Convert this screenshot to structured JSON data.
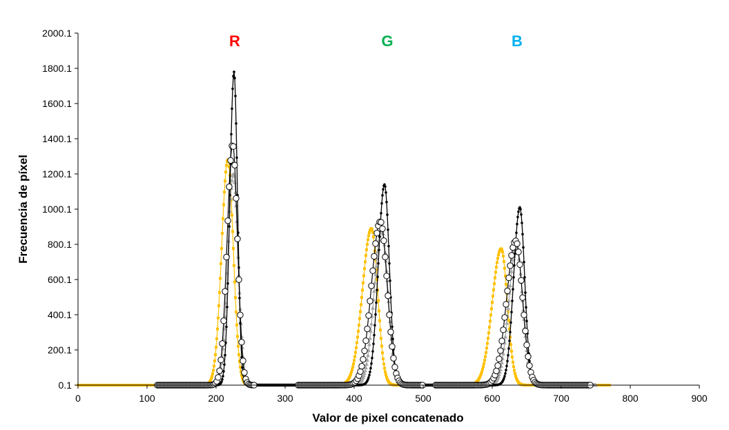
{
  "chart_data": {
    "type": "line",
    "title": "",
    "xlabel": "Valor de pixel concatenado",
    "ylabel": "Frecuencia de píxel",
    "xlim": [
      0,
      900
    ],
    "ylim": [
      0.1,
      2000.1
    ],
    "x_ticks": [
      0,
      100,
      200,
      300,
      400,
      500,
      600,
      700,
      800,
      900
    ],
    "x_tick_labels": [
      "0",
      "100",
      "200",
      "300",
      "400",
      "500",
      "600",
      "700",
      "800",
      "900"
    ],
    "y_ticks": [
      0.1,
      200.1,
      400.1,
      600.1,
      800.1,
      1000.1,
      1200.1,
      1400.1,
      1600.1,
      1800.1,
      2000.1
    ],
    "y_tick_labels": [
      "0.1",
      "200.1",
      "400.1",
      "600.1",
      "800.1",
      "1000.1",
      "1200.1",
      "1400.1",
      "1600.1",
      "1800.1",
      "2000.1"
    ],
    "grid": false,
    "legend": "none",
    "annotations": [
      {
        "text": "R",
        "x": 227,
        "y": 1980,
        "color": "#FF0000"
      },
      {
        "text": "G",
        "x": 448,
        "y": 1980,
        "color": "#00B050"
      },
      {
        "text": "B",
        "x": 636,
        "y": 1980,
        "color": "#00B0F0"
      }
    ],
    "series": [
      {
        "name": "yellow-square-series",
        "color": "#FFC000",
        "marker": "square",
        "peaks": [
          {
            "channel": "R",
            "center": 217,
            "height": 1280,
            "sigma_left": 9,
            "sigma_right": 8
          },
          {
            "channel": "G",
            "center": 425,
            "height": 890,
            "sigma_left": 13,
            "sigma_right": 9
          },
          {
            "channel": "B",
            "center": 613,
            "height": 775,
            "sigma_left": 13,
            "sigma_right": 9
          }
        ],
        "x_range": [
          0,
          770
        ]
      },
      {
        "name": "gray-triangle-series",
        "color": "#A6A6A6",
        "marker": "triangle",
        "peaks": [
          {
            "channel": "R",
            "center": 225,
            "height": 1200,
            "sigma_left": 8,
            "sigma_right": 7
          },
          {
            "channel": "G",
            "center": 440,
            "height": 880,
            "sigma_left": 11,
            "sigma_right": 9
          },
          {
            "channel": "B",
            "center": 635,
            "height": 790,
            "sigma_left": 11,
            "sigma_right": 9
          }
        ],
        "x_range": [
          120,
          750
        ]
      },
      {
        "name": "black-dot-series",
        "color": "#000000",
        "marker": "dot",
        "peaks": [
          {
            "channel": "R",
            "center": 226,
            "height": 1780,
            "sigma_left": 6,
            "sigma_right": 5
          },
          {
            "channel": "G",
            "center": 444,
            "height": 1140,
            "sigma_left": 9,
            "sigma_right": 7
          },
          {
            "channel": "B",
            "center": 640,
            "height": 1010,
            "sigma_left": 9,
            "sigma_right": 7
          }
        ],
        "x_range": [
          120,
          745
        ]
      },
      {
        "name": "open-circle-series",
        "color": "#000000",
        "marker": "open-circle",
        "peaks": [
          {
            "channel": "R",
            "center": 224,
            "height": 1370,
            "sigma_left": 8,
            "sigma_right": 7
          },
          {
            "channel": "G",
            "center": 438,
            "height": 930,
            "sigma_left": 13,
            "sigma_right": 10
          },
          {
            "channel": "B",
            "center": 634,
            "height": 820,
            "sigma_left": 13,
            "sigma_right": 10
          }
        ],
        "x_segments": [
          [
            115,
            255
          ],
          [
            318,
            500
          ],
          [
            518,
            742
          ]
        ]
      }
    ]
  }
}
